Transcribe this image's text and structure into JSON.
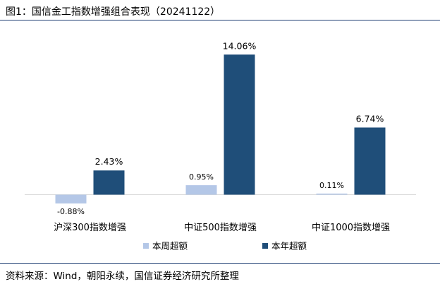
{
  "figure": {
    "title": "图1：国信金工指数增强组合表现（20241122）",
    "source": "资料来源：Wind，朝阳永续，国信证券经济研究所整理"
  },
  "chart_data": {
    "type": "bar",
    "categories": [
      "沪深300指数增强",
      "中证500指数增强",
      "中证1000指数增强"
    ],
    "series": [
      {
        "name": "本周超额",
        "values": [
          -0.88,
          0.95,
          0.11
        ],
        "labels": [
          "-0.88%",
          "0.95%",
          "0.11%"
        ],
        "color": "#b4c7e7"
      },
      {
        "name": "本年超额",
        "values": [
          2.43,
          14.06,
          6.74
        ],
        "labels": [
          "2.43%",
          "14.06%",
          "6.74%"
        ],
        "color": "#1f4e79"
      }
    ],
    "unit": "%",
    "ylim": [
      -1.5,
      16
    ],
    "grid": false,
    "legend": "bottom",
    "title": "",
    "xlabel": "",
    "ylabel": ""
  }
}
